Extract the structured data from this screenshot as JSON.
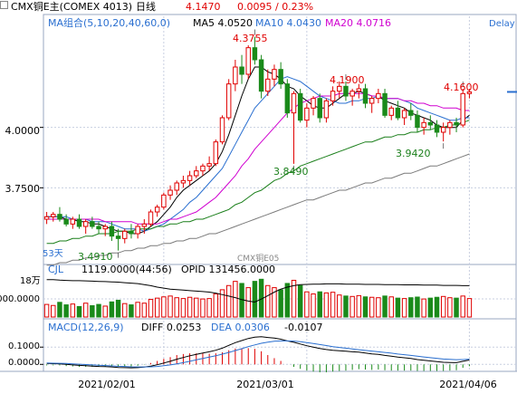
{
  "header": {
    "title": "CMX铜E主(COMEX 4013)",
    "period": "日线",
    "price": "4.1470",
    "change": "0.0095 / 0.23%",
    "delay": "Delay"
  },
  "ma_legend": {
    "label": "MA组合(5,10,20,40,60,0)",
    "ma5": "MA5 4.0520",
    "ma10": "MA10 4.0430",
    "ma20": "MA20 4.0716",
    "colors": {
      "ma5": "#000000",
      "ma10": "#2a6fd0",
      "ma20": "#d000d0",
      "ma40": "#1a7f1a",
      "ma60": "#7a7a7a"
    }
  },
  "price_axis": {
    "ticks": [
      "4.0000",
      "3.7500"
    ],
    "left_label": "53天",
    "watermark": "CMX铜E05"
  },
  "annotations": {
    "high1": "4.3755",
    "high2": "4.1900",
    "high3": "4.1600",
    "low1": "3.8490",
    "low2": "3.9420",
    "low3": "3.4910"
  },
  "volume": {
    "label": "CJL",
    "value": "1119.0000(44:56)",
    "opid": "OPID 131456.0000",
    "unit": "18万",
    "axis_tick": "000.0000"
  },
  "macd": {
    "label": "MACD(12,26,9)",
    "diff": "DIFF 0.0253",
    "dea": "DEA 0.0306",
    "value": "-0.0107",
    "ticks": [
      "0.1000",
      "0.0000"
    ]
  },
  "dates": [
    "2021/02/01",
    "2021/03/01",
    "2021/04/06"
  ],
  "chart_data": {
    "type": "candlestick",
    "ohlc": [
      [
        3.62,
        3.65,
        3.6,
        3.63
      ],
      [
        3.63,
        3.65,
        3.61,
        3.64
      ],
      [
        3.64,
        3.67,
        3.61,
        3.62
      ],
      [
        3.62,
        3.64,
        3.59,
        3.6
      ],
      [
        3.6,
        3.63,
        3.58,
        3.62
      ],
      [
        3.62,
        3.64,
        3.58,
        3.59
      ],
      [
        3.59,
        3.62,
        3.56,
        3.61
      ],
      [
        3.61,
        3.63,
        3.58,
        3.59
      ],
      [
        3.59,
        3.61,
        3.56,
        3.58
      ],
      [
        3.58,
        3.6,
        3.55,
        3.59
      ],
      [
        3.59,
        3.61,
        3.53,
        3.55
      ],
      [
        3.55,
        3.58,
        3.49,
        3.54
      ],
      [
        3.54,
        3.58,
        3.52,
        3.57
      ],
      [
        3.57,
        3.6,
        3.54,
        3.56
      ],
      [
        3.56,
        3.6,
        3.54,
        3.59
      ],
      [
        3.59,
        3.62,
        3.56,
        3.6
      ],
      [
        3.6,
        3.66,
        3.59,
        3.65
      ],
      [
        3.65,
        3.68,
        3.63,
        3.67
      ],
      [
        3.67,
        3.73,
        3.66,
        3.72
      ],
      [
        3.72,
        3.76,
        3.7,
        3.74
      ],
      [
        3.74,
        3.78,
        3.72,
        3.77
      ],
      [
        3.77,
        3.8,
        3.75,
        3.78
      ],
      [
        3.78,
        3.82,
        3.76,
        3.8
      ],
      [
        3.8,
        3.84,
        3.79,
        3.82
      ],
      [
        3.82,
        3.85,
        3.8,
        3.84
      ],
      [
        3.84,
        3.88,
        3.82,
        3.85
      ],
      [
        3.85,
        3.95,
        3.84,
        3.94
      ],
      [
        3.94,
        4.05,
        3.93,
        4.04
      ],
      [
        4.04,
        4.2,
        4.03,
        4.18
      ],
      [
        4.18,
        4.28,
        4.15,
        4.25
      ],
      [
        4.25,
        4.3,
        4.18,
        4.22
      ],
      [
        4.22,
        4.34,
        4.2,
        4.33
      ],
      [
        4.33,
        4.3755,
        4.26,
        4.28
      ],
      [
        4.28,
        4.3,
        4.12,
        4.15
      ],
      [
        4.15,
        4.24,
        4.13,
        4.2
      ],
      [
        4.2,
        4.26,
        4.17,
        4.24
      ],
      [
        4.24,
        4.27,
        4.16,
        4.18
      ],
      [
        4.18,
        4.2,
        4.04,
        4.06
      ],
      [
        4.06,
        4.15,
        3.849,
        4.14
      ],
      [
        4.14,
        4.16,
        4.02,
        4.03
      ],
      [
        4.03,
        4.1,
        4.0,
        4.08
      ],
      [
        4.08,
        4.13,
        4.05,
        4.12
      ],
      [
        4.12,
        4.14,
        4.02,
        4.04
      ],
      [
        4.04,
        4.12,
        4.02,
        4.11
      ],
      [
        4.11,
        4.17,
        4.09,
        4.15
      ],
      [
        4.15,
        4.19,
        4.12,
        4.17
      ],
      [
        4.17,
        4.19,
        4.11,
        4.13
      ],
      [
        4.13,
        4.16,
        4.09,
        4.15
      ],
      [
        4.15,
        4.18,
        4.12,
        4.16
      ],
      [
        4.16,
        4.18,
        4.08,
        4.1
      ],
      [
        4.1,
        4.13,
        4.06,
        4.12
      ],
      [
        4.12,
        4.16,
        4.1,
        4.14
      ],
      [
        4.14,
        4.16,
        4.04,
        4.05
      ],
      [
        4.05,
        4.09,
        4.03,
        4.08
      ],
      [
        4.08,
        4.11,
        4.03,
        4.04
      ],
      [
        4.04,
        4.08,
        4.01,
        4.07
      ],
      [
        4.07,
        4.1,
        4.03,
        4.05
      ],
      [
        4.05,
        4.07,
        3.98,
        4.0
      ],
      [
        4.0,
        4.04,
        3.97,
        4.02
      ],
      [
        4.02,
        4.05,
        3.99,
        4.01
      ],
      [
        4.01,
        4.03,
        3.96,
        3.98
      ],
      [
        3.98,
        4.02,
        3.942,
        4.0
      ],
      [
        4.0,
        4.03,
        3.97,
        4.02
      ],
      [
        4.02,
        4.04,
        3.98,
        4.01
      ],
      [
        4.01,
        4.16,
        4.0,
        4.14
      ],
      [
        4.14,
        4.16,
        4.12,
        4.147
      ]
    ],
    "ma_series": [
      {
        "name": "MA5",
        "values": [
          3.63,
          3.63,
          3.63,
          3.62,
          3.62,
          3.61,
          3.61,
          3.6,
          3.6,
          3.59,
          3.58,
          3.57,
          3.57,
          3.56,
          3.56,
          3.57,
          3.59,
          3.61,
          3.64,
          3.67,
          3.71,
          3.74,
          3.76,
          3.78,
          3.8,
          3.82,
          3.85,
          3.9,
          3.97,
          4.05,
          4.13,
          4.2,
          4.25,
          4.25,
          4.23,
          4.22,
          4.2,
          4.17,
          4.16,
          4.13,
          4.11,
          4.09,
          4.08,
          4.08,
          4.1,
          4.12,
          4.14,
          4.14,
          4.15,
          4.14,
          4.13,
          4.13,
          4.11,
          4.1,
          4.09,
          4.08,
          4.06,
          4.05,
          4.04,
          4.03,
          4.01,
          4.0,
          4.0,
          4.0,
          4.03,
          4.05
        ]
      },
      {
        "name": "MA10",
        "values": [
          3.63,
          3.63,
          3.63,
          3.63,
          3.62,
          3.62,
          3.62,
          3.61,
          3.61,
          3.61,
          3.6,
          3.59,
          3.58,
          3.58,
          3.58,
          3.57,
          3.58,
          3.59,
          3.6,
          3.62,
          3.64,
          3.66,
          3.69,
          3.71,
          3.74,
          3.77,
          3.8,
          3.83,
          3.88,
          3.93,
          3.98,
          4.03,
          4.08,
          4.11,
          4.14,
          4.17,
          4.2,
          4.21,
          4.2,
          4.19,
          4.17,
          4.15,
          4.13,
          4.12,
          4.11,
          4.1,
          4.1,
          4.11,
          4.11,
          4.12,
          4.12,
          4.13,
          4.12,
          4.12,
          4.12,
          4.11,
          4.1,
          4.08,
          4.07,
          4.06,
          4.05,
          4.04,
          4.03,
          4.03,
          4.04,
          4.04
        ]
      },
      {
        "name": "MA20",
        "values": [
          3.62,
          3.62,
          3.62,
          3.62,
          3.62,
          3.62,
          3.62,
          3.62,
          3.62,
          3.61,
          3.61,
          3.61,
          3.61,
          3.61,
          3.6,
          3.6,
          3.6,
          3.6,
          3.61,
          3.62,
          3.62,
          3.63,
          3.64,
          3.65,
          3.67,
          3.69,
          3.71,
          3.74,
          3.77,
          3.8,
          3.84,
          3.87,
          3.91,
          3.94,
          3.97,
          4.0,
          4.03,
          4.06,
          4.08,
          4.1,
          4.11,
          4.12,
          4.13,
          4.13,
          4.13,
          4.14,
          4.14,
          4.14,
          4.14,
          4.14,
          4.13,
          4.13,
          4.12,
          4.12,
          4.12,
          4.11,
          4.11,
          4.1,
          4.1,
          4.09,
          4.09,
          4.08,
          4.08,
          4.08,
          4.07,
          4.07
        ]
      },
      {
        "name": "MA40",
        "values": [
          3.52,
          3.52,
          3.53,
          3.53,
          3.54,
          3.54,
          3.55,
          3.55,
          3.56,
          3.56,
          3.56,
          3.57,
          3.57,
          3.57,
          3.58,
          3.58,
          3.58,
          3.59,
          3.59,
          3.6,
          3.6,
          3.61,
          3.61,
          3.62,
          3.62,
          3.63,
          3.64,
          3.65,
          3.66,
          3.68,
          3.69,
          3.71,
          3.73,
          3.74,
          3.76,
          3.78,
          3.79,
          3.81,
          3.82,
          3.84,
          3.85,
          3.86,
          3.87,
          3.88,
          3.89,
          3.9,
          3.91,
          3.92,
          3.93,
          3.94,
          3.94,
          3.95,
          3.96,
          3.96,
          3.97,
          3.97,
          3.98,
          3.98,
          3.99,
          3.99,
          4.0,
          4.0,
          4.01,
          4.01,
          4.02,
          4.03
        ]
      },
      {
        "name": "MA60",
        "values": [
          3.43,
          3.43,
          3.44,
          3.44,
          3.45,
          3.45,
          3.46,
          3.46,
          3.47,
          3.47,
          3.48,
          3.48,
          3.49,
          3.49,
          3.5,
          3.5,
          3.51,
          3.51,
          3.52,
          3.52,
          3.53,
          3.53,
          3.54,
          3.54,
          3.55,
          3.56,
          3.56,
          3.57,
          3.58,
          3.59,
          3.6,
          3.61,
          3.62,
          3.63,
          3.64,
          3.65,
          3.66,
          3.67,
          3.68,
          3.69,
          3.7,
          3.7,
          3.71,
          3.72,
          3.73,
          3.74,
          3.74,
          3.75,
          3.76,
          3.77,
          3.77,
          3.78,
          3.79,
          3.79,
          3.8,
          3.81,
          3.81,
          3.82,
          3.83,
          3.84,
          3.84,
          3.85,
          3.86,
          3.87,
          3.88,
          3.89
        ]
      }
    ],
    "volume_values": [
      60,
      55,
      70,
      58,
      62,
      50,
      66,
      54,
      60,
      52,
      72,
      80,
      64,
      58,
      70,
      66,
      84,
      90,
      96,
      100,
      92,
      88,
      94,
      90,
      86,
      88,
      110,
      130,
      150,
      170,
      160,
      140,
      170,
      180,
      150,
      140,
      130,
      160,
      175,
      150,
      120,
      110,
      120,
      115,
      118,
      105,
      100,
      98,
      102,
      96,
      94,
      92,
      100,
      96,
      90,
      88,
      92,
      95,
      86,
      90,
      94,
      98,
      92,
      90,
      100,
      88
    ],
    "volume_up": [
      1,
      1,
      0,
      0,
      1,
      0,
      1,
      0,
      0,
      1,
      0,
      0,
      1,
      0,
      1,
      1,
      1,
      1,
      1,
      1,
      1,
      1,
      1,
      1,
      1,
      1,
      1,
      1,
      1,
      1,
      0,
      1,
      0,
      0,
      1,
      1,
      0,
      0,
      1,
      0,
      1,
      1,
      0,
      1,
      1,
      1,
      0,
      1,
      1,
      0,
      1,
      1,
      0,
      1,
      0,
      1,
      0,
      0,
      1,
      0,
      0,
      1,
      1,
      0,
      1,
      1
    ],
    "oi_values": [
      150,
      150,
      148,
      147,
      146,
      146,
      145,
      144,
      143,
      142,
      141,
      140,
      138,
      136,
      134,
      130,
      126,
      120,
      116,
      112,
      110,
      108,
      106,
      104,
      102,
      100,
      96,
      90,
      84,
      78,
      70,
      64,
      60,
      72,
      86,
      100,
      112,
      120,
      126,
      130,
      131,
      132,
      132,
      133,
      133,
      133,
      132,
      132,
      132,
      131,
      131,
      131,
      130,
      130,
      130,
      129,
      129,
      129,
      128,
      128,
      128,
      127,
      127,
      127,
      126,
      126
    ],
    "macd_diff": [
      0.005,
      0.004,
      0.003,
      0.0,
      -0.003,
      -0.006,
      -0.008,
      -0.01,
      -0.012,
      -0.013,
      -0.015,
      -0.018,
      -0.019,
      -0.02,
      -0.019,
      -0.016,
      -0.01,
      -0.002,
      0.008,
      0.018,
      0.03,
      0.04,
      0.05,
      0.058,
      0.066,
      0.073,
      0.082,
      0.094,
      0.11,
      0.126,
      0.138,
      0.15,
      0.158,
      0.16,
      0.156,
      0.152,
      0.146,
      0.136,
      0.128,
      0.118,
      0.108,
      0.1,
      0.092,
      0.086,
      0.082,
      0.079,
      0.076,
      0.073,
      0.071,
      0.066,
      0.061,
      0.058,
      0.052,
      0.047,
      0.042,
      0.038,
      0.034,
      0.028,
      0.024,
      0.02,
      0.016,
      0.012,
      0.011,
      0.01,
      0.018,
      0.0253
    ],
    "macd_dea": [
      0.008,
      0.007,
      0.006,
      0.005,
      0.003,
      0.001,
      -0.001,
      -0.003,
      -0.005,
      -0.007,
      -0.009,
      -0.011,
      -0.012,
      -0.014,
      -0.015,
      -0.015,
      -0.014,
      -0.012,
      -0.008,
      -0.003,
      0.003,
      0.01,
      0.018,
      0.026,
      0.034,
      0.042,
      0.05,
      0.059,
      0.069,
      0.08,
      0.091,
      0.103,
      0.113,
      0.122,
      0.129,
      0.134,
      0.136,
      0.136,
      0.135,
      0.131,
      0.126,
      0.121,
      0.115,
      0.109,
      0.103,
      0.098,
      0.094,
      0.089,
      0.085,
      0.081,
      0.077,
      0.073,
      0.069,
      0.065,
      0.06,
      0.056,
      0.052,
      0.047,
      0.043,
      0.039,
      0.035,
      0.031,
      0.029,
      0.027,
      0.028,
      0.0306
    ],
    "price_range": [
      3.44,
      4.46
    ],
    "macd_range": [
      -0.03,
      0.18
    ]
  }
}
